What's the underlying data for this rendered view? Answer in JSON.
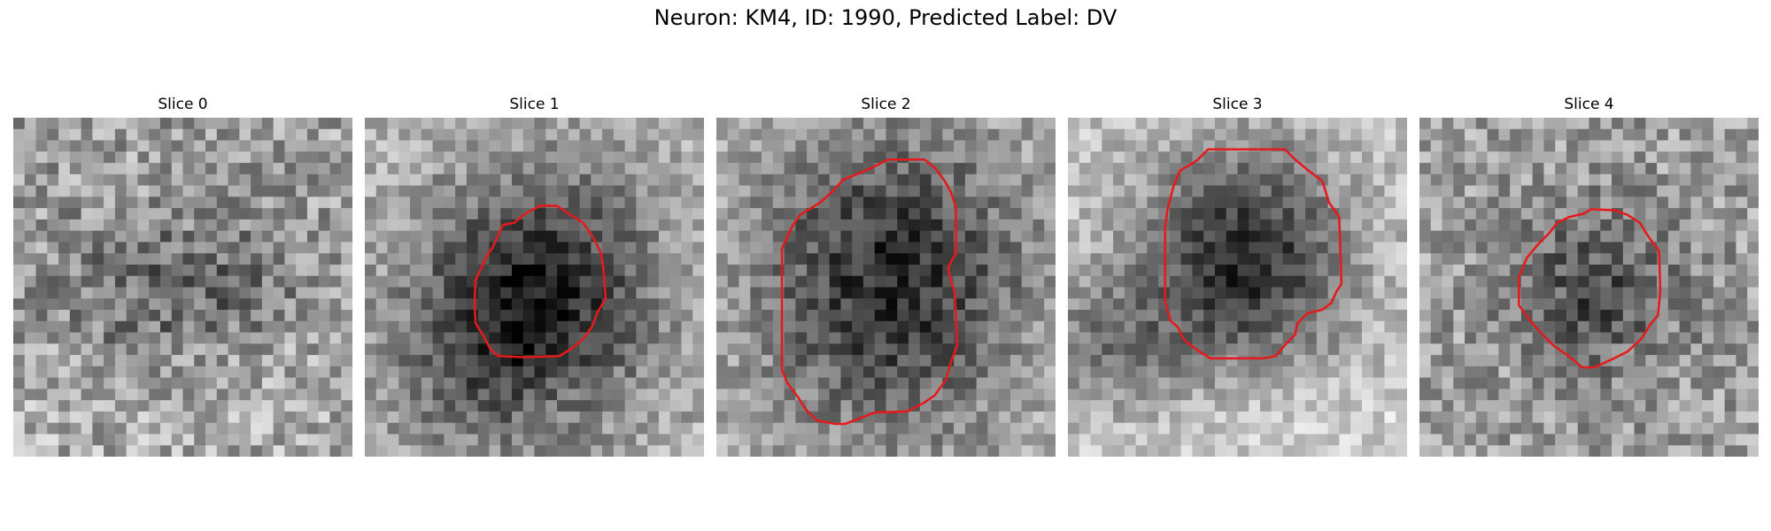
{
  "figure": {
    "title": "Neuron: KM4, ID: 1990, Predicted Label: DV",
    "grid_size": 30,
    "contour_color": "#e41a1c"
  },
  "panels": [
    {
      "title": "Slice 0",
      "has_contour": false
    },
    {
      "title": "Slice 1",
      "has_contour": true
    },
    {
      "title": "Slice 2",
      "has_contour": true
    },
    {
      "title": "Slice 3",
      "has_contour": true
    },
    {
      "title": "Slice 4",
      "has_contour": true
    }
  ]
}
